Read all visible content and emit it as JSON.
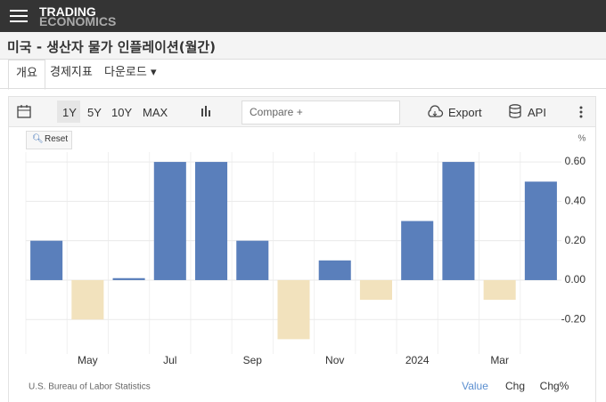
{
  "header": {
    "logo": [
      "TRADING",
      "ECONOMICS"
    ]
  },
  "page_title": "미국 - 생산자 물가 인플레이션(월간)",
  "tabs": [
    "개요",
    "경제지표",
    "다운로드"
  ],
  "toolbar": {
    "ranges": [
      "1Y",
      "5Y",
      "10Y",
      "MAX"
    ],
    "compare": "Compare +",
    "export": "Export",
    "api": "API"
  },
  "reset": "Reset",
  "footer": {
    "source": "U.S. Bureau of Labor Statistics",
    "modes": [
      "Value",
      "Chg",
      "Chg%"
    ]
  },
  "chart_data": {
    "type": "bar",
    "ylabel": "%",
    "categories": [
      null,
      "May",
      null,
      "Jul",
      null,
      "Sep",
      null,
      "Nov",
      null,
      "2024",
      null,
      "Mar",
      null
    ],
    "values": [
      0.2,
      -0.2,
      0.01,
      0.6,
      0.6,
      0.2,
      -0.3,
      0.1,
      -0.1,
      0.3,
      0.6,
      -0.1,
      0.5
    ],
    "color": "#5a7fbb",
    "negative_color": "#f2e2bd",
    "ylim": [
      -0.375,
      0.65
    ],
    "yticks": [
      {
        "value": -0.2,
        "label": "-0.20"
      },
      {
        "value": 0,
        "label": "0.00"
      },
      {
        "value": 0.2,
        "label": "0.20"
      },
      {
        "value": 0.4,
        "label": "0.40"
      },
      {
        "value": 0.6,
        "label": "0.60"
      }
    ],
    "grid": true
  }
}
